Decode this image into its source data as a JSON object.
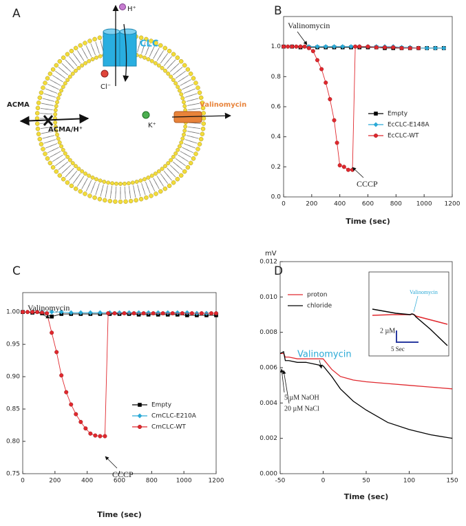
{
  "diagram": {
    "panel_label": "A",
    "labels": {
      "clc": "CLC",
      "proton": "H⁺",
      "chloride": "Cl⁻",
      "acma": "ACMA",
      "acma_h": "ACMA/H⁺",
      "potassium": "K⁺",
      "valinomycin": "Valinomycin"
    }
  },
  "chart_data": [
    {
      "type": "line",
      "panel_label": "B",
      "x_label": "Time (sec)",
      "xlim": [
        0,
        1200
      ],
      "xticks": [
        0,
        200,
        400,
        600,
        800,
        1000,
        1200
      ],
      "ylim": [
        0,
        1.2
      ],
      "yticks": [
        {
          "value": 0,
          "label": "0.0"
        },
        0.2,
        0.4,
        0.6,
        0.8,
        {
          "value": 1,
          "label": "1.0"
        }
      ],
      "annotations": [
        "Valinomycin",
        "CCCP"
      ],
      "series": [
        {
          "name": "Empty",
          "color": "#000000",
          "marker": "square",
          "x": [
            0,
            60,
            120,
            180,
            240,
            300,
            360,
            420,
            480,
            540,
            600,
            660,
            720,
            780,
            840,
            900,
            960,
            1020,
            1080,
            1140
          ],
          "values": [
            1.0,
            1.0,
            0.995,
            0.995,
            0.995,
            0.995,
            0.995,
            0.995,
            0.995,
            0.995,
            0.995,
            0.995,
            0.99,
            0.99,
            0.99,
            0.99,
            0.99,
            0.99,
            0.99,
            0.99
          ]
        },
        {
          "name": "EcCLC-E148A",
          "color": "#2aa9d6",
          "marker": "diamond",
          "x": [
            0,
            60,
            120,
            180,
            240,
            300,
            360,
            420,
            480,
            540,
            600,
            660,
            720,
            780,
            840,
            900,
            960,
            1020,
            1080,
            1140
          ],
          "values": [
            1.0,
            1.0,
            1.0,
            1.0,
            1.0,
            1.0,
            1.0,
            1.0,
            1.0,
            1.0,
            1.0,
            1.0,
            1.0,
            1.0,
            0.995,
            0.995,
            0.99,
            0.99,
            0.99,
            0.99
          ]
        },
        {
          "name": "EcCLC-WT",
          "color": "#e0282e",
          "marker": "circle",
          "x": [
            0,
            30,
            60,
            90,
            120,
            150,
            180,
            210,
            240,
            270,
            300,
            330,
            360,
            380,
            400,
            430,
            460,
            490,
            510,
            540,
            600,
            660,
            720,
            780,
            840,
            900,
            960
          ],
          "values": [
            1.0,
            1.0,
            1.0,
            1.0,
            1.0,
            1.0,
            0.99,
            0.97,
            0.91,
            0.85,
            0.76,
            0.65,
            0.51,
            0.36,
            0.21,
            0.2,
            0.18,
            0.18,
            1.0,
            1.0,
            1.0,
            0.995,
            0.995,
            0.995,
            0.99,
            0.99,
            0.99
          ]
        }
      ]
    },
    {
      "type": "line",
      "panel_label": "C",
      "x_label": "Time (sec)",
      "xlim": [
        0,
        1200
      ],
      "xticks": [
        0,
        200,
        400,
        600,
        800,
        1000,
        1200
      ],
      "ylim": [
        0.75,
        1.03
      ],
      "yticks": [
        0.75,
        {
          "value": 0.8,
          "label": "0.80"
        },
        0.85,
        {
          "value": 0.9,
          "label": "0.90"
        },
        0.95,
        {
          "value": 1,
          "label": "1.00"
        }
      ],
      "annotations": [
        "Valinomycin",
        "CCCP"
      ],
      "series": [
        {
          "name": "Empty",
          "color": "#000000",
          "marker": "square",
          "x": [
            0,
            60,
            120,
            180,
            240,
            300,
            360,
            420,
            480,
            540,
            600,
            660,
            720,
            780,
            840,
            900,
            960,
            1020,
            1080,
            1140,
            1200
          ],
          "values": [
            1.0,
            0.999,
            0.998,
            0.993,
            0.997,
            0.997,
            0.997,
            0.997,
            0.997,
            0.997,
            0.997,
            0.997,
            0.996,
            0.996,
            0.996,
            0.996,
            0.996,
            0.995,
            0.995,
            0.995,
            0.995
          ]
        },
        {
          "name": "CmCLC-E210A",
          "color": "#2aa9d6",
          "marker": "diamond",
          "x": [
            0,
            60,
            120,
            180,
            240,
            300,
            360,
            420,
            480,
            540,
            600,
            660,
            720,
            780,
            840,
            900,
            960,
            1020,
            1080,
            1140,
            1200
          ],
          "values": [
            1.0,
            1.0,
            1.0,
            1.0,
            1.0,
            0.999,
            0.999,
            0.999,
            0.999,
            0.999,
            0.999,
            0.999,
            0.999,
            0.999,
            0.999,
            0.999,
            0.999,
            0.999,
            0.998,
            0.998,
            0.998
          ]
        },
        {
          "name": "CmCLC-WT",
          "color": "#e0282e",
          "marker": "circle",
          "x": [
            0,
            30,
            60,
            90,
            120,
            150,
            180,
            210,
            240,
            270,
            300,
            330,
            360,
            390,
            420,
            450,
            480,
            510,
            530,
            570,
            630,
            690,
            750,
            810,
            870,
            930,
            990,
            1050,
            1110,
            1170,
            1200
          ],
          "values": [
            1.0,
            1.0,
            1.0,
            1.0,
            0.999,
            0.998,
            0.968,
            0.938,
            0.902,
            0.876,
            0.857,
            0.842,
            0.83,
            0.82,
            0.812,
            0.809,
            0.808,
            0.808,
            0.998,
            0.998,
            0.998,
            0.998,
            0.998,
            0.998,
            0.998,
            0.998,
            0.998,
            0.998,
            0.998,
            0.998,
            0.998
          ]
        }
      ]
    },
    {
      "type": "line",
      "panel_label": "D",
      "x_label": "Time (sec)",
      "y_label": "mV",
      "xlim": [
        -50,
        150
      ],
      "xticks": [
        -50,
        0,
        50,
        100,
        150
      ],
      "ylim": [
        0,
        0.012
      ],
      "yticks": [
        {
          "value": 0,
          "label": "0.000"
        },
        {
          "value": 0.002,
          "label": "0.002"
        },
        {
          "value": 0.004,
          "label": "0.004"
        },
        {
          "value": 0.006,
          "label": "0.006"
        },
        {
          "value": 0.008,
          "label": "0.008"
        },
        {
          "value": 0.01,
          "label": "0.010"
        },
        {
          "value": 0.012,
          "label": "0.012"
        }
      ],
      "annotations": [
        "Valinomycin",
        "5 µM NaOH",
        "20 µM NaCl",
        "Valinomycin",
        "2 µM",
        "5 Sec"
      ],
      "series": [
        {
          "name": "proton",
          "color": "#e0282e",
          "x": [
            -50,
            -46,
            -44,
            -40,
            -30,
            -20,
            -10,
            0,
            5,
            10,
            20,
            35,
            50,
            75,
            100,
            125,
            150
          ],
          "values": [
            0.0068,
            0.0068,
            0.0066,
            0.0066,
            0.0065,
            0.0065,
            0.0065,
            0.0065,
            0.0062,
            0.0059,
            0.0055,
            0.0053,
            0.0052,
            0.0051,
            0.005,
            0.0049,
            0.0048
          ]
        },
        {
          "name": "chloride",
          "color": "#000000",
          "x": [
            -50,
            -46,
            -44,
            -40,
            -30,
            -20,
            -10,
            0,
            10,
            20,
            35,
            50,
            75,
            100,
            125,
            150
          ],
          "values": [
            0.0068,
            0.0069,
            0.0064,
            0.0064,
            0.0063,
            0.0063,
            0.0062,
            0.0061,
            0.0055,
            0.0048,
            0.0041,
            0.0036,
            0.0029,
            0.0025,
            0.0022,
            0.002
          ]
        }
      ]
    }
  ]
}
